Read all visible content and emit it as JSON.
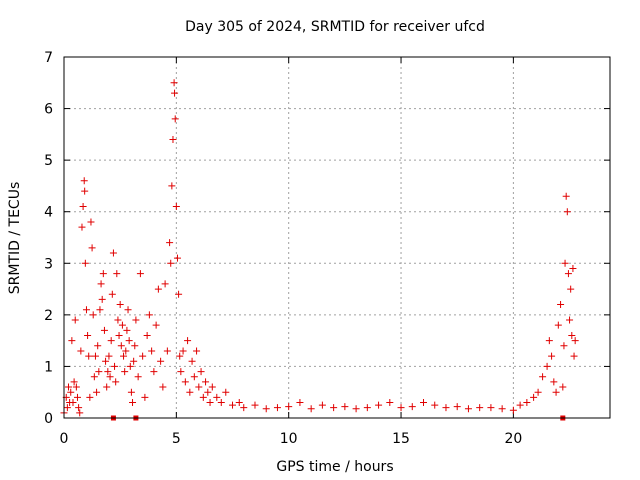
{
  "chart_data": {
    "type": "scatter",
    "title": "Day 305 of 2024, SRMTID for receiver ufcd",
    "xlabel": "GPS time / hours",
    "ylabel": "SRMTID / TECUs",
    "xlim": [
      0,
      24.3
    ],
    "ylim": [
      0,
      7
    ],
    "xticks": [
      0,
      5,
      10,
      15,
      20
    ],
    "yticks": [
      0,
      1,
      2,
      3,
      4,
      5,
      6,
      7
    ],
    "grid": true,
    "marker": "+",
    "color": "#e00000",
    "series": [
      {
        "name": "SRMTID",
        "x": [
          0.0,
          0.1,
          0.15,
          0.2,
          0.25,
          0.3,
          0.35,
          0.4,
          0.45,
          0.5,
          0.55,
          0.6,
          0.65,
          0.7,
          0.75,
          0.8,
          0.85,
          0.9,
          0.92,
          0.95,
          1.0,
          1.05,
          1.1,
          1.15,
          1.2,
          1.25,
          1.3,
          1.35,
          1.4,
          1.45,
          1.5,
          1.55,
          1.6,
          1.65,
          1.7,
          1.75,
          1.8,
          1.85,
          1.9,
          1.95,
          2.0,
          2.05,
          2.1,
          2.15,
          2.2,
          2.25,
          2.3,
          2.35,
          2.4,
          2.45,
          2.5,
          2.55,
          2.6,
          2.65,
          2.7,
          2.75,
          2.8,
          2.85,
          2.9,
          2.95,
          3.0,
          3.05,
          3.1,
          3.15,
          3.2,
          3.3,
          3.4,
          3.5,
          3.6,
          3.7,
          3.8,
          3.9,
          4.0,
          4.1,
          4.2,
          4.3,
          4.4,
          4.5,
          4.6,
          4.7,
          4.75,
          4.8,
          4.85,
          4.9,
          4.92,
          4.95,
          5.0,
          5.05,
          5.1,
          5.15,
          5.2,
          5.3,
          5.4,
          5.5,
          5.6,
          5.7,
          5.8,
          5.9,
          6.0,
          6.1,
          6.2,
          6.3,
          6.4,
          6.5,
          6.6,
          6.8,
          7.0,
          7.2,
          7.5,
          7.8,
          8.0,
          8.5,
          9.0,
          9.5,
          10.0,
          10.5,
          11.0,
          11.5,
          12.0,
          12.5,
          13.0,
          13.5,
          14.0,
          14.5,
          15.0,
          15.5,
          16.0,
          16.5,
          17.0,
          17.5,
          18.0,
          18.5,
          19.0,
          19.5,
          20.0,
          20.3,
          20.6,
          20.9,
          21.1,
          21.3,
          21.5,
          21.6,
          21.7,
          21.8,
          21.9,
          22.0,
          22.1,
          22.2,
          22.25,
          22.3,
          22.35,
          22.4,
          22.45,
          22.5,
          22.55,
          22.6,
          22.65,
          22.7,
          22.75
        ],
        "y": [
          0.1,
          0.4,
          0.2,
          0.6,
          0.3,
          0.5,
          1.5,
          0.3,
          0.7,
          1.9,
          0.6,
          0.4,
          0.2,
          0.1,
          1.3,
          3.7,
          4.1,
          4.6,
          4.4,
          3.0,
          2.1,
          1.6,
          1.2,
          0.4,
          3.8,
          3.3,
          2.0,
          0.8,
          1.2,
          0.5,
          1.4,
          0.9,
          2.1,
          2.6,
          2.3,
          2.8,
          1.7,
          1.1,
          0.6,
          0.9,
          1.2,
          0.8,
          1.5,
          2.4,
          3.2,
          1.0,
          0.7,
          2.8,
          1.9,
          1.6,
          2.2,
          1.4,
          1.8,
          1.2,
          0.9,
          1.3,
          1.7,
          2.1,
          1.5,
          1.0,
          0.5,
          0.3,
          1.1,
          1.4,
          1.9,
          0.8,
          2.8,
          1.2,
          0.4,
          1.6,
          2.0,
          1.3,
          0.9,
          1.8,
          2.5,
          1.1,
          0.6,
          2.6,
          1.3,
          3.4,
          3.0,
          4.5,
          5.4,
          6.5,
          6.3,
          5.8,
          4.1,
          3.1,
          2.4,
          1.2,
          0.9,
          1.3,
          0.7,
          1.5,
          0.5,
          1.1,
          0.8,
          1.3,
          0.6,
          0.9,
          0.4,
          0.7,
          0.5,
          0.3,
          0.6,
          0.4,
          0.3,
          0.5,
          0.25,
          0.3,
          0.2,
          0.25,
          0.18,
          0.2,
          0.22,
          0.3,
          0.18,
          0.25,
          0.2,
          0.22,
          0.18,
          0.2,
          0.25,
          0.3,
          0.2,
          0.22,
          0.3,
          0.25,
          0.2,
          0.22,
          0.18,
          0.2,
          0.2,
          0.18,
          0.15,
          0.25,
          0.3,
          0.4,
          0.5,
          0.8,
          1.0,
          1.5,
          1.2,
          0.7,
          0.5,
          1.8,
          2.2,
          0.6,
          1.4,
          3.0,
          4.3,
          4.0,
          2.8,
          1.9,
          2.5,
          1.6,
          2.9,
          1.2,
          1.5
        ]
      }
    ],
    "ground_points": {
      "x": [
        2.2,
        3.2,
        22.2
      ],
      "y": [
        0,
        0,
        0
      ]
    }
  }
}
